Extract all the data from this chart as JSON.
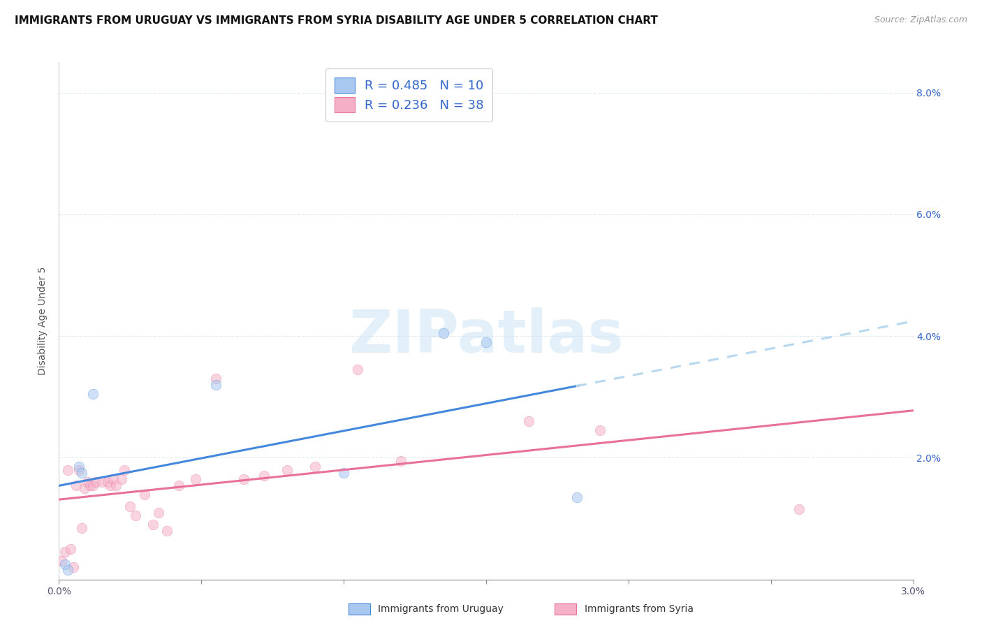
{
  "title": "IMMIGRANTS FROM URUGUAY VS IMMIGRANTS FROM SYRIA DISABILITY AGE UNDER 5 CORRELATION CHART",
  "source": "Source: ZipAtlas.com",
  "ylabel": "Disability Age Under 5",
  "legend_label_uruguay": "Immigrants from Uruguay",
  "legend_label_syria": "Immigrants from Syria",
  "R_uruguay": 0.485,
  "N_uruguay": 10,
  "R_syria": 0.236,
  "N_syria": 38,
  "color_uruguay": "#a8c8f0",
  "color_syria": "#f5b0c8",
  "color_line_uruguay": "#4488dd",
  "color_line_syria": "#e8709a",
  "color_text_blue": "#3366cc",
  "color_text_pink": "#e8709a",
  "color_dash_uruguay": "#b8d8f0",
  "xlim": [
    0.0,
    3.0
  ],
  "ylim": [
    0.0,
    8.5
  ],
  "yticks_display": [
    2.0,
    4.0,
    6.0,
    8.0
  ],
  "xticks": [
    0.0,
    0.5,
    1.0,
    1.5,
    2.0,
    2.5,
    3.0
  ],
  "uruguay_x": [
    0.02,
    0.03,
    0.07,
    0.08,
    0.12,
    0.55,
    1.0,
    1.35,
    1.5,
    1.82
  ],
  "uruguay_y": [
    0.25,
    0.15,
    1.85,
    1.75,
    3.05,
    3.2,
    1.75,
    4.05,
    3.9,
    1.35
  ],
  "syria_x": [
    0.01,
    0.02,
    0.03,
    0.04,
    0.05,
    0.06,
    0.07,
    0.08,
    0.09,
    0.1,
    0.11,
    0.12,
    0.13,
    0.15,
    0.17,
    0.18,
    0.19,
    0.2,
    0.22,
    0.23,
    0.25,
    0.27,
    0.3,
    0.33,
    0.35,
    0.38,
    0.42,
    0.48,
    0.55,
    0.65,
    0.72,
    0.8,
    0.9,
    1.05,
    1.2,
    1.65,
    1.9,
    2.6
  ],
  "syria_y": [
    0.3,
    0.45,
    1.8,
    0.5,
    0.2,
    1.55,
    1.8,
    0.85,
    1.5,
    1.6,
    1.55,
    1.55,
    1.6,
    1.6,
    1.6,
    1.55,
    1.65,
    1.55,
    1.65,
    1.8,
    1.2,
    1.05,
    1.4,
    0.9,
    1.1,
    0.8,
    1.55,
    1.65,
    3.3,
    1.65,
    1.7,
    1.8,
    1.85,
    3.45,
    1.95,
    2.6,
    2.45,
    1.15
  ],
  "watermark": "ZIPatlas",
  "background_color": "#ffffff",
  "grid_color": "#e0e8f0",
  "title_fontsize": 11,
  "axis_label_fontsize": 10,
  "tick_fontsize": 10,
  "legend_fontsize": 13,
  "marker_size": 110,
  "marker_alpha": 0.55,
  "line_width": 2.2
}
